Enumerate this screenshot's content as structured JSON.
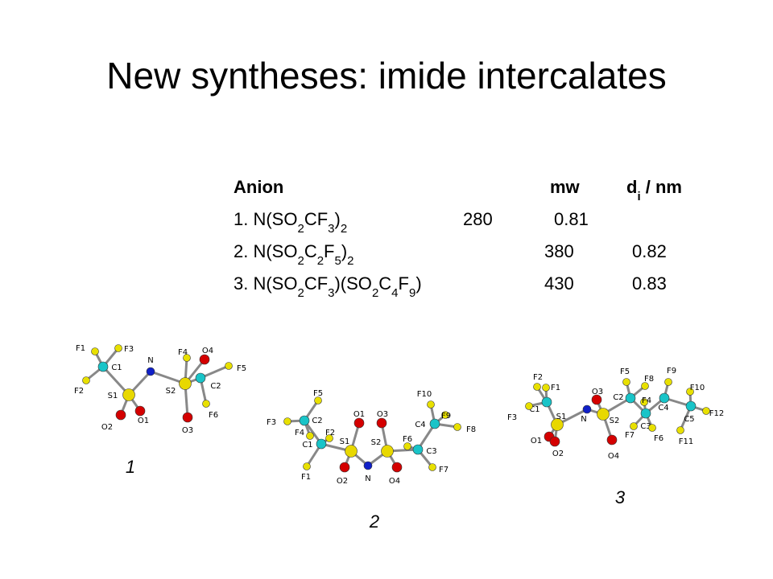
{
  "title": "New syntheses: imide intercalates",
  "table": {
    "header": [
      "Anion",
      "mw",
      [
        "d",
        "i",
        " / nm"
      ]
    ],
    "rows": [
      [
        [
          "1. N(SO",
          "2",
          "CF",
          "3",
          ")",
          "2"
        ],
        "280",
        "0.81"
      ],
      [
        [
          "2. N(SO",
          "2",
          "C",
          "2",
          "F",
          "5",
          ")",
          "2"
        ],
        "380",
        "0.82"
      ],
      [
        [
          "3. N(SO",
          "2",
          "CF",
          "3",
          ")(SO",
          "2",
          "C",
          "4",
          "F",
          "9",
          ")"
        ],
        "430",
        "0.83"
      ]
    ]
  },
  "molecules": [
    {
      "number": "1",
      "atoms": [
        "F1",
        "F3",
        "C1",
        "F2",
        "N",
        "S1",
        "O2",
        "O1",
        "F4",
        "O4",
        "S2",
        "C2",
        "F5",
        "F6",
        "O3"
      ]
    },
    {
      "number": "2",
      "atoms": [
        "F5",
        "F3",
        "C2",
        "F4",
        "F2",
        "C1",
        "F1",
        "S1",
        "O1",
        "O2",
        "N",
        "O3",
        "S2",
        "O4",
        "F6",
        "C3",
        "F7",
        "C4",
        "F10",
        "F9",
        "F8"
      ]
    },
    {
      "number": "3",
      "atoms": [
        "F2",
        "F1",
        "C1",
        "F3",
        "S1",
        "O1",
        "O2",
        "N",
        "O3",
        "S2",
        "O4",
        "C2",
        "F5",
        "F8",
        "F4",
        "C3",
        "F7",
        "F6",
        "C4",
        "F9",
        "F10",
        "C5",
        "F12",
        "F11"
      ]
    }
  ]
}
